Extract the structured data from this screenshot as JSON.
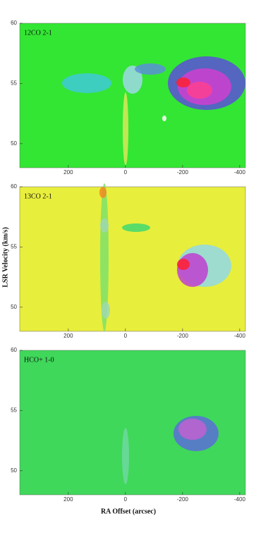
{
  "chart_data": [
    {
      "type": "heatmap",
      "title": "12CO 2-1",
      "color": "#33e633",
      "xlim": [
        370,
        -420
      ],
      "xticks": [
        200,
        0,
        -200,
        -400
      ],
      "ylim": [
        48,
        60
      ],
      "yticks": [
        60,
        55,
        50
      ]
    },
    {
      "type": "heatmap",
      "title": "13CO 2-1",
      "color": "#e8ee3c",
      "xlim": [
        370,
        -420
      ],
      "xticks": [
        200,
        0,
        -200,
        -400
      ],
      "ylim": [
        48,
        60
      ],
      "yticks": [
        60,
        55,
        50
      ],
      "ylabel": "LSR Velocity (km/s)"
    },
    {
      "type": "heatmap",
      "title": "HCO+ 1-0",
      "color": "#3fd85a",
      "xlim": [
        370,
        -420
      ],
      "xticks": [
        200,
        0,
        -200,
        -400
      ],
      "ylim": [
        48,
        60
      ],
      "yticks": [
        60,
        55,
        50
      ],
      "xlabel": "RA Offset (arcsec)"
    }
  ]
}
